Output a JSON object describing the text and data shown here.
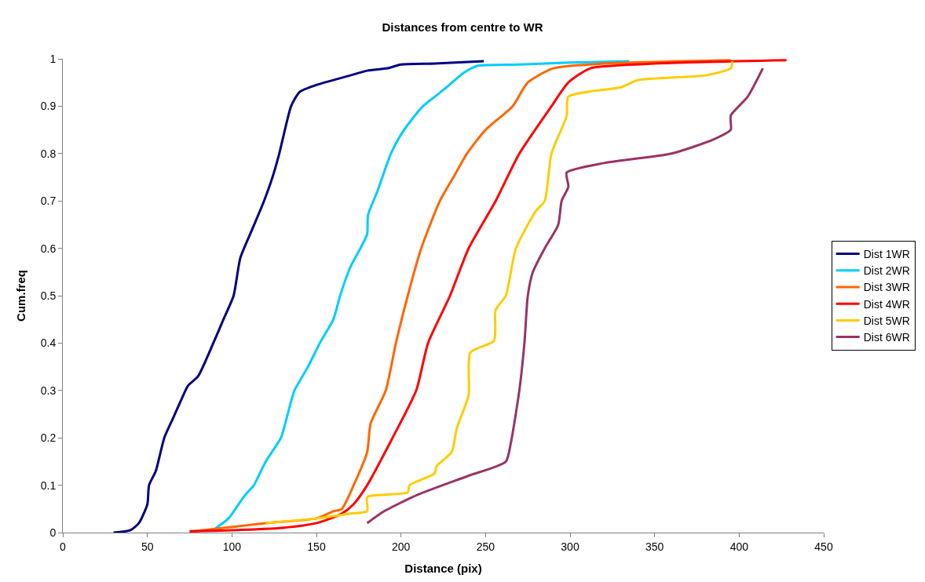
{
  "chart_data": {
    "type": "line",
    "title": "Distances from centre to WR",
    "xlabel": "Distance (pix)",
    "ylabel": "Cum.freq",
    "xlim": [
      0,
      450
    ],
    "xticks": [
      0,
      50,
      100,
      150,
      200,
      250,
      300,
      350,
      400,
      450
    ],
    "ylim": [
      0,
      1
    ],
    "yticks": [
      0,
      0.1,
      0.2,
      0.3,
      0.4,
      0.5,
      0.6,
      0.7,
      0.8,
      0.9,
      1
    ],
    "grid": false,
    "legend": "right",
    "marker": "none",
    "line_style": "solid",
    "series": [
      {
        "name": "Dist 1WR",
        "color": "#000080",
        "x": [
          30,
          40,
          45,
          50,
          51,
          55,
          60,
          65,
          70,
          74,
          80,
          89,
          95,
          101,
          105,
          112,
          119,
          124,
          128,
          132,
          135,
          140,
          150,
          160,
          170,
          180,
          192,
          200,
          220,
          249
        ],
        "values": [
          0,
          0.005,
          0.02,
          0.06,
          0.1,
          0.13,
          0.2,
          0.24,
          0.28,
          0.31,
          0.33,
          0.4,
          0.45,
          0.5,
          0.58,
          0.64,
          0.7,
          0.75,
          0.8,
          0.86,
          0.9,
          0.93,
          0.945,
          0.955,
          0.965,
          0.975,
          0.98,
          0.988,
          0.99,
          0.995
        ]
      },
      {
        "name": "Dist 2WR",
        "color": "#00ccff",
        "x": [
          90,
          98,
          104,
          108,
          113,
          120,
          129,
          133,
          137,
          145,
          152,
          160,
          164,
          170,
          176,
          180,
          180.5,
          186,
          194,
          200,
          206,
          213,
          220,
          227,
          237,
          245,
          270,
          300,
          335
        ],
        "values": [
          0.008,
          0.03,
          0.06,
          0.08,
          0.1,
          0.15,
          0.2,
          0.25,
          0.3,
          0.35,
          0.4,
          0.45,
          0.5,
          0.56,
          0.6,
          0.63,
          0.67,
          0.72,
          0.8,
          0.84,
          0.87,
          0.9,
          0.92,
          0.94,
          0.97,
          0.985,
          0.988,
          0.992,
          0.995
        ]
      },
      {
        "name": "Dist 3WR",
        "color": "#ff6600",
        "x": [
          75,
          120,
          150,
          160,
          165,
          172,
          180,
          182,
          191,
          197,
          204,
          212,
          223,
          231,
          239,
          250,
          266,
          275,
          290,
          320,
          395
        ],
        "values": [
          0.002,
          0.02,
          0.03,
          0.045,
          0.05,
          0.1,
          0.17,
          0.23,
          0.3,
          0.4,
          0.5,
          0.6,
          0.7,
          0.75,
          0.8,
          0.85,
          0.9,
          0.95,
          0.98,
          0.99,
          0.997
        ]
      },
      {
        "name": "Dist 4WR",
        "color": "#ff0000",
        "x": [
          75,
          100,
          130,
          150,
          165,
          172,
          180,
          195,
          209,
          216,
          229,
          240,
          256,
          270,
          289,
          299,
          312,
          350,
          428
        ],
        "values": [
          0.003,
          0.005,
          0.01,
          0.02,
          0.04,
          0.06,
          0.1,
          0.2,
          0.3,
          0.4,
          0.5,
          0.6,
          0.7,
          0.8,
          0.9,
          0.95,
          0.98,
          0.99,
          0.997
        ]
      },
      {
        "name": "Dist 5WR",
        "color": "#ffcc00",
        "x": [
          120,
          150,
          170,
          180,
          180,
          190,
          204,
          205,
          220,
          221,
          230,
          233,
          240,
          241,
          255,
          256,
          262,
          266,
          268,
          275,
          280,
          285,
          289,
          298,
          299,
          330,
          340,
          380,
          395,
          396
        ],
        "values": [
          0.02,
          0.03,
          0.04,
          0.045,
          0.075,
          0.08,
          0.085,
          0.1,
          0.125,
          0.14,
          0.17,
          0.22,
          0.29,
          0.38,
          0.405,
          0.47,
          0.5,
          0.57,
          0.6,
          0.65,
          0.68,
          0.7,
          0.8,
          0.88,
          0.92,
          0.94,
          0.955,
          0.965,
          0.98,
          0.995
        ]
      },
      {
        "name": "Dist 6WR",
        "color": "#993366",
        "x": [
          180,
          190,
          210,
          240,
          262,
          265,
          270,
          273,
          275,
          278,
          285,
          293,
          295,
          299,
          298,
          320,
          360,
          385,
          395,
          395,
          405,
          414
        ],
        "values": [
          0.02,
          0.045,
          0.08,
          0.12,
          0.15,
          0.19,
          0.3,
          0.4,
          0.5,
          0.55,
          0.6,
          0.65,
          0.7,
          0.73,
          0.76,
          0.78,
          0.8,
          0.83,
          0.85,
          0.88,
          0.92,
          0.98
        ]
      }
    ]
  }
}
